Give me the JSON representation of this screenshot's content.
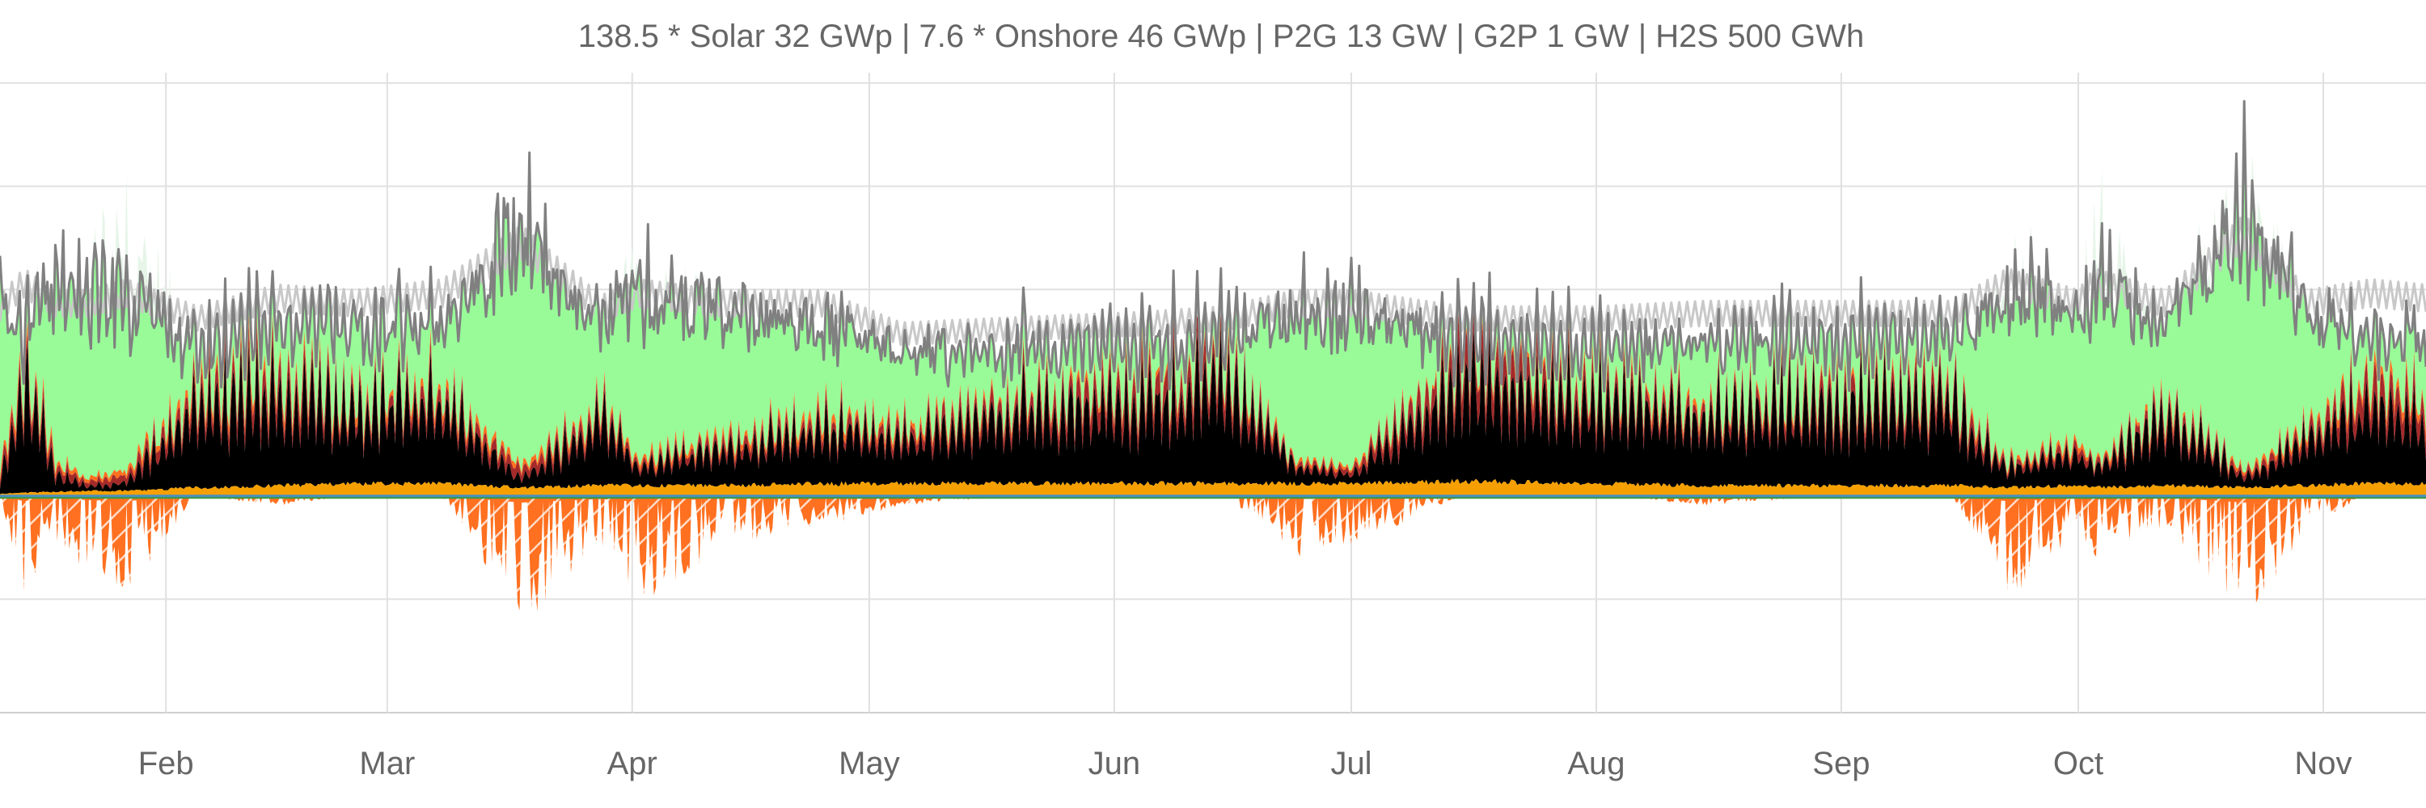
{
  "chart_data": {
    "type": "area",
    "title": "138.5 * Solar 32 GWp | 7.6 * Onshore 46 GWp | P2G 13 GW | G2P 1 GW | H2S 500 GWh",
    "xlabel": "",
    "ylabel": "",
    "x_axis": {
      "type": "time",
      "tick_labels": [
        "Feb",
        "Mar",
        "Apr",
        "May",
        "Jun",
        "Jul",
        "Aug",
        "Sep",
        "Oct",
        "Nov"
      ],
      "range": [
        "2019-01-11",
        "2019-11-14"
      ]
    },
    "y_axis": {
      "range": [
        -210,
        410
      ],
      "gridlines": [
        -100,
        0,
        100,
        200,
        300,
        400
      ],
      "tick_labels_visible": false
    },
    "grid": true,
    "legend": "none",
    "colors": {
      "orange_base": "#f5a000",
      "black": "#000000",
      "dark_red": "#a52a2a",
      "orange_red": "#ff7020",
      "light_green": "#98fb98",
      "pale_green": "#e6f5e8",
      "gray_line": "#808080",
      "light_gray_line": "#c8c8c8",
      "negative_orange": "#ff7020",
      "zero_blue": "#4a90c0",
      "zero_green": "#3a9a3a"
    },
    "series_profile_points": [
      {
        "date": "2019-01-11",
        "base": 2,
        "black": 10,
        "darkred": 8,
        "orangered": 6,
        "green": 160,
        "spike": 0,
        "gray": 185,
        "neg": 0
      },
      {
        "date": "2019-01-14",
        "base": 3,
        "black": 130,
        "darkred": 15,
        "orangered": 8,
        "green": 40,
        "spike": 15,
        "gray": 210,
        "neg": -100
      },
      {
        "date": "2019-01-18",
        "base": 4,
        "black": 20,
        "darkred": 10,
        "orangered": 5,
        "green": 150,
        "spike": 0,
        "gray": 190,
        "neg": -50
      },
      {
        "date": "2019-01-22",
        "base": 5,
        "black": 5,
        "darkred": 5,
        "orangered": 3,
        "green": 170,
        "spike": 0,
        "gray": 190,
        "neg": -80
      },
      {
        "date": "2019-01-27",
        "base": 5,
        "black": 10,
        "darkred": 8,
        "orangered": 5,
        "green": 160,
        "spike": 80,
        "gray": 200,
        "neg": -100
      },
      {
        "date": "2019-02-05",
        "base": 8,
        "black": 90,
        "darkred": 15,
        "orangered": 8,
        "green": 40,
        "spike": 0,
        "gray": 175,
        "neg": 0
      },
      {
        "date": "2019-02-15",
        "base": 10,
        "black": 100,
        "darkred": 20,
        "orangered": 8,
        "green": 50,
        "spike": 0,
        "gray": 195,
        "neg": -10
      },
      {
        "date": "2019-02-25",
        "base": 12,
        "black": 80,
        "darkred": 10,
        "orangered": 6,
        "green": 70,
        "spike": 0,
        "gray": 190,
        "neg": 0
      },
      {
        "date": "2019-03-08",
        "base": 12,
        "black": 90,
        "darkred": 12,
        "orangered": 6,
        "green": 60,
        "spike": 0,
        "gray": 200,
        "neg": 0
      },
      {
        "date": "2019-03-18",
        "base": 8,
        "black": 10,
        "darkred": 10,
        "orangered": 5,
        "green": 230,
        "spike": 0,
        "gray": 250,
        "neg": -130
      },
      {
        "date": "2019-03-28",
        "base": 10,
        "black": 70,
        "darkred": 10,
        "orangered": 5,
        "green": 80,
        "spike": 0,
        "gray": 185,
        "neg": -60
      },
      {
        "date": "2019-04-02",
        "base": 10,
        "black": 20,
        "darkred": 5,
        "orangered": 5,
        "green": 160,
        "spike": 30,
        "gray": 200,
        "neg": -120
      },
      {
        "date": "2019-04-12",
        "base": 10,
        "black": 40,
        "darkred": 8,
        "orangered": 5,
        "green": 120,
        "spike": 0,
        "gray": 190,
        "neg": -50
      },
      {
        "date": "2019-04-25",
        "base": 12,
        "black": 60,
        "darkred": 10,
        "orangered": 6,
        "green": 90,
        "spike": 0,
        "gray": 190,
        "neg": -30
      },
      {
        "date": "2019-05-05",
        "base": 12,
        "black": 50,
        "darkred": 10,
        "orangered": 5,
        "green": 70,
        "spike": 0,
        "gray": 160,
        "neg": -10
      },
      {
        "date": "2019-05-20",
        "base": 12,
        "black": 80,
        "darkred": 15,
        "orangered": 5,
        "green": 50,
        "spike": 0,
        "gray": 165,
        "neg": 0
      },
      {
        "date": "2019-06-05",
        "base": 12,
        "black": 90,
        "darkred": 20,
        "orangered": 5,
        "green": 40,
        "spike": 0,
        "gray": 170,
        "neg": 0
      },
      {
        "date": "2019-06-15",
        "base": 12,
        "black": 110,
        "darkred": 20,
        "orangered": 5,
        "green": 30,
        "spike": 0,
        "gray": 175,
        "neg": 0
      },
      {
        "date": "2019-06-24",
        "base": 12,
        "black": 20,
        "darkred": 5,
        "orangered": 3,
        "green": 140,
        "spike": 0,
        "gray": 190,
        "neg": -60
      },
      {
        "date": "2019-07-01",
        "base": 12,
        "black": 10,
        "darkred": 5,
        "orangered": 3,
        "green": 140,
        "spike": 0,
        "gray": 190,
        "neg": -50
      },
      {
        "date": "2019-07-15",
        "base": 14,
        "black": 110,
        "darkred": 30,
        "orangered": 5,
        "green": 20,
        "spike": 0,
        "gray": 175,
        "neg": 0
      },
      {
        "date": "2019-08-01",
        "base": 12,
        "black": 90,
        "darkred": 15,
        "orangered": 5,
        "green": 40,
        "spike": 0,
        "gray": 175,
        "neg": 0
      },
      {
        "date": "2019-08-15",
        "base": 10,
        "black": 80,
        "darkred": 10,
        "orangered": 5,
        "green": 60,
        "spike": 0,
        "gray": 180,
        "neg": -10
      },
      {
        "date": "2019-09-01",
        "base": 10,
        "black": 90,
        "darkred": 15,
        "orangered": 5,
        "green": 50,
        "spike": 0,
        "gray": 180,
        "neg": 0
      },
      {
        "date": "2019-09-15",
        "base": 10,
        "black": 90,
        "darkred": 15,
        "orangered": 5,
        "green": 50,
        "spike": 0,
        "gray": 180,
        "neg": 0
      },
      {
        "date": "2019-09-22",
        "base": 8,
        "black": 20,
        "darkred": 5,
        "orangered": 3,
        "green": 160,
        "spike": 20,
        "gray": 210,
        "neg": -100
      },
      {
        "date": "2019-10-01",
        "base": 10,
        "black": 40,
        "darkred": 8,
        "orangered": 5,
        "green": 130,
        "spike": 0,
        "gray": 190,
        "neg": -50
      },
      {
        "date": "2019-10-03",
        "base": 8,
        "black": 20,
        "darkred": 5,
        "orangered": 3,
        "green": 170,
        "spike": 60,
        "gray": 210,
        "neg": -70
      },
      {
        "date": "2019-10-12",
        "base": 10,
        "black": 80,
        "darkred": 10,
        "orangered": 5,
        "green": 80,
        "spike": 0,
        "gray": 190,
        "neg": -30
      },
      {
        "date": "2019-10-22",
        "base": 8,
        "black": 10,
        "darkred": 5,
        "orangered": 3,
        "green": 240,
        "spike": 30,
        "gray": 260,
        "neg": -130
      },
      {
        "date": "2019-10-30",
        "base": 10,
        "black": 50,
        "darkred": 10,
        "orangered": 5,
        "green": 110,
        "spike": 0,
        "gray": 190,
        "neg": -30
      },
      {
        "date": "2019-11-07",
        "base": 12,
        "black": 90,
        "darkred": 25,
        "orangered": 8,
        "green": 40,
        "spike": 0,
        "gray": 200,
        "neg": 0
      },
      {
        "date": "2019-11-14",
        "base": 12,
        "black": 70,
        "darkred": 20,
        "orangered": 8,
        "green": 60,
        "spike": 0,
        "gray": 195,
        "neg": 0
      }
    ]
  }
}
